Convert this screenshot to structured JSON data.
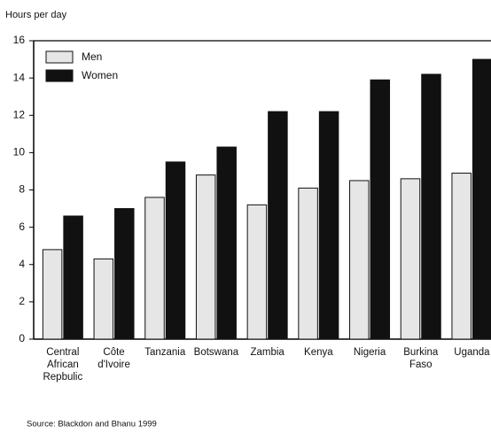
{
  "chart_data": {
    "type": "bar",
    "ylabel": "Hours per day",
    "categories": [
      "Central African Repbulic",
      "Côte d'Ivoire",
      "Tanzania",
      "Botswana",
      "Zambia",
      "Kenya",
      "Nigeria",
      "Burkina Faso",
      "Uganda"
    ],
    "series": [
      {
        "name": "Men",
        "color": "#e6e6e6",
        "values": [
          4.8,
          4.3,
          7.6,
          8.8,
          7.2,
          8.1,
          8.5,
          8.6,
          8.9
        ]
      },
      {
        "name": "Women",
        "color": "#111111",
        "values": [
          6.6,
          7.0,
          9.5,
          10.3,
          12.2,
          12.2,
          13.9,
          14.2,
          15.0
        ]
      }
    ],
    "ylim": [
      0,
      16
    ],
    "yticks": [
      0,
      2,
      4,
      6,
      8,
      10,
      12,
      14,
      16
    ],
    "legend": "upper left",
    "source": "Source: Blackdon and Bhanu 1999"
  }
}
